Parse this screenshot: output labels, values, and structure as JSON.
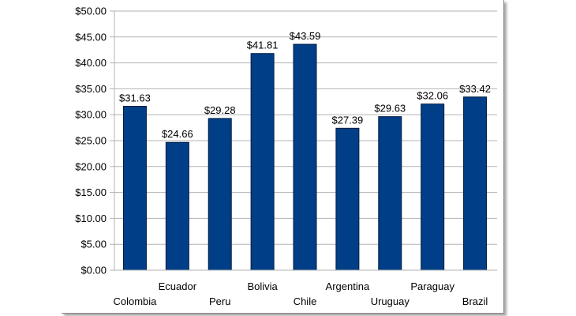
{
  "chart_data": {
    "type": "bar",
    "categories": [
      "Colombia",
      "Ecuador",
      "Peru",
      "Bolivia",
      "Chile",
      "Argentina",
      "Uruguay",
      "Paraguay",
      "Brazil"
    ],
    "values": [
      31.63,
      24.66,
      29.28,
      41.81,
      43.59,
      27.39,
      29.63,
      32.06,
      33.42
    ],
    "data_labels": [
      "$31.63",
      "$24.66",
      "$29.28",
      "$41.81",
      "$43.59",
      "$27.39",
      "$29.63",
      "$32.06",
      "$33.42"
    ],
    "y_ticks": [
      "$0.00",
      "$5.00",
      "$10.00",
      "$15.00",
      "$20.00",
      "$25.00",
      "$30.00",
      "$35.00",
      "$40.00",
      "$45.00",
      "$50.00"
    ],
    "title": "",
    "xlabel": "",
    "ylabel": "",
    "ylim": [
      0,
      50
    ],
    "grid": true,
    "legend": "none",
    "colors": {
      "bar_fill": "#003f87",
      "bar_stroke": "#001a40",
      "gridline": "#b3b3b3",
      "axis": "#b3b3b3"
    }
  }
}
